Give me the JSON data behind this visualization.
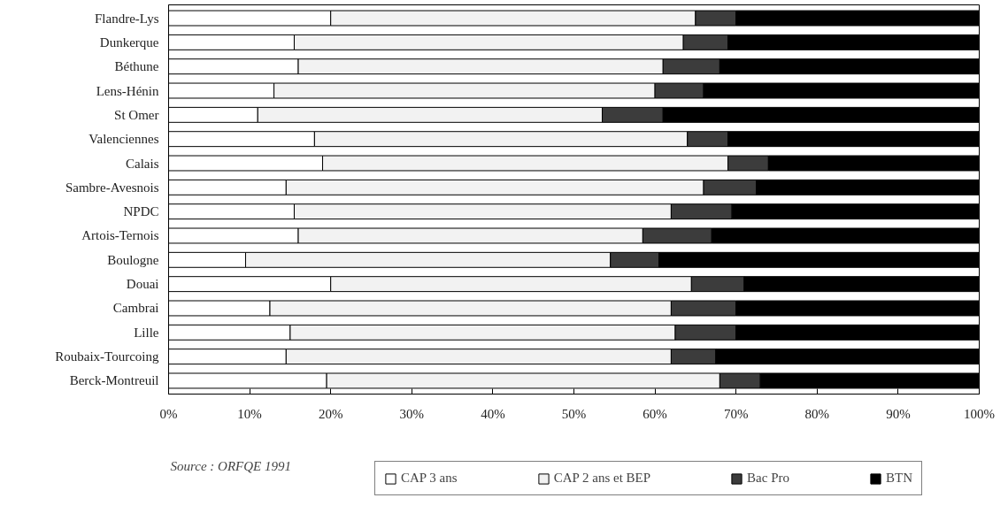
{
  "chart_data": {
    "type": "bar",
    "orientation": "horizontal",
    "stacked": true,
    "categories": [
      "Flandre-Lys",
      "Dunkerque",
      "Béthune",
      "Lens-Hénin",
      "St Omer",
      "Valenciennes",
      "Calais",
      "Sambre-Avesnois",
      "NPDC",
      "Artois-Ternois",
      "Boulogne",
      "Douai",
      "Cambrai",
      "Lille",
      "Roubaix-Tourcoing",
      "Berck-Montreuil"
    ],
    "series": [
      {
        "name": "CAP 3 ans",
        "color": "#ffffff",
        "values": [
          20,
          15.5,
          16,
          13,
          11,
          18,
          19,
          14.5,
          15.5,
          16,
          9.5,
          20,
          12.5,
          15,
          14.5,
          19.5
        ]
      },
      {
        "name": "CAP 2 ans et BEP",
        "color": "#f2f2f2",
        "values": [
          45,
          48,
          45,
          47,
          42.5,
          46,
          50,
          51.5,
          46.5,
          42.5,
          45,
          44.5,
          49.5,
          47.5,
          47.5,
          48.5
        ]
      },
      {
        "name": "Bac Pro",
        "color": "#3c3c3c",
        "values": [
          5,
          5.5,
          7,
          6,
          7.5,
          5,
          5,
          6.5,
          7.5,
          8.5,
          6,
          6.5,
          8,
          7.5,
          5.5,
          5
        ]
      },
      {
        "name": "BTN",
        "color": "#000000",
        "values": [
          30,
          31,
          32,
          34,
          39,
          31,
          26,
          27.5,
          30.5,
          33,
          39.5,
          29,
          30,
          30,
          32.5,
          27
        ]
      }
    ],
    "xlim": [
      0,
      100
    ],
    "xticks": [
      {
        "value": 0,
        "label": "0%"
      },
      {
        "value": 10,
        "label": "10%"
      },
      {
        "value": 20,
        "label": "20%"
      },
      {
        "value": 30,
        "label": "30%"
      },
      {
        "value": 40,
        "label": "40%"
      },
      {
        "value": 50,
        "label": "50%"
      },
      {
        "value": 60,
        "label": "60%"
      },
      {
        "value": 70,
        "label": "70%"
      },
      {
        "value": 80,
        "label": "80%"
      },
      {
        "value": 90,
        "label": "90%"
      },
      {
        "value": 100,
        "label": "100%"
      }
    ],
    "grid": false,
    "legend": "bottom",
    "annotations": [
      "Source : ORFQE 1991"
    ]
  }
}
